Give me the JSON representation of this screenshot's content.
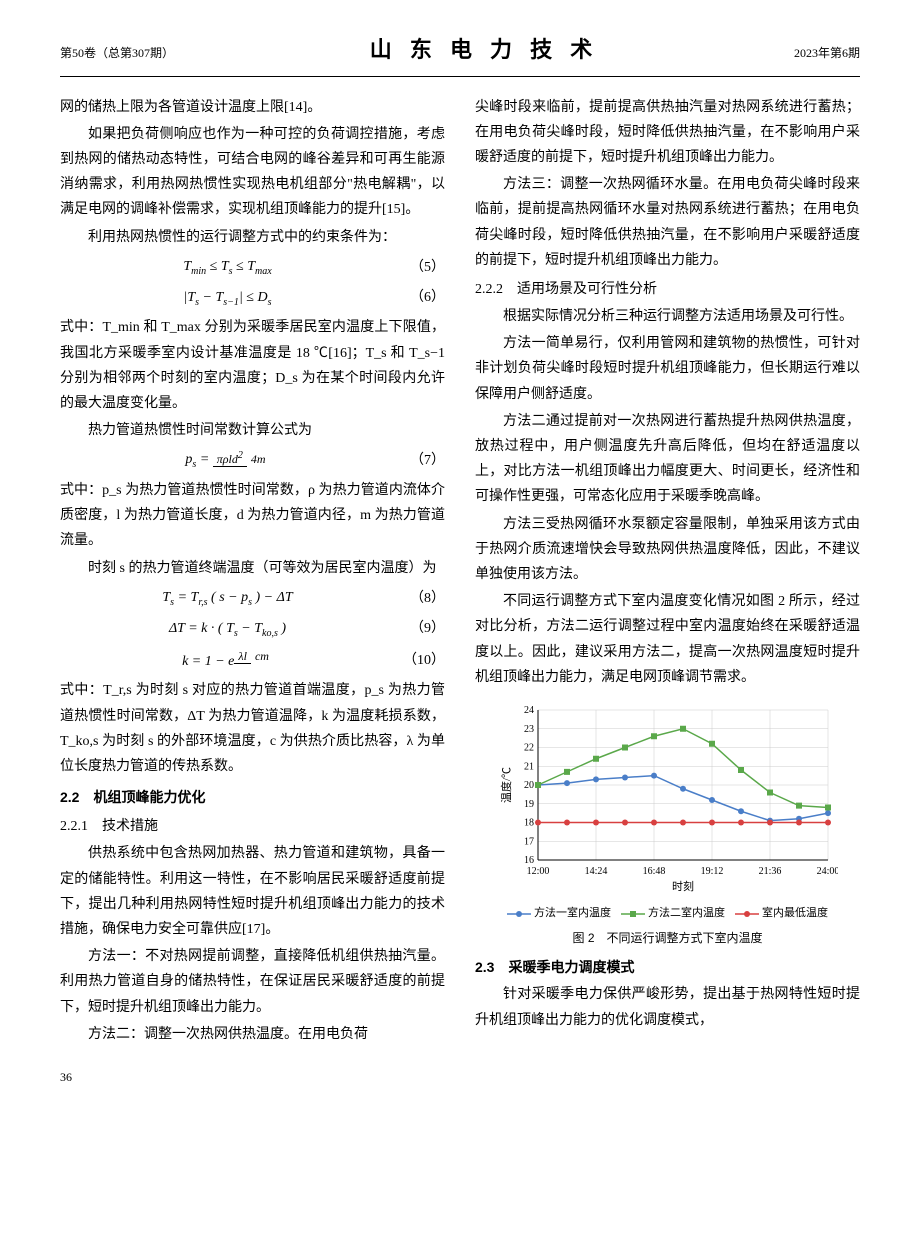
{
  "header": {
    "left": "第50卷（总第307期）",
    "center": "山 东 电 力 技 术",
    "right": "2023年第6期"
  },
  "col1": {
    "p1": "网的储热上限为各管道设计温度上限[14]。",
    "p2": "如果把负荷侧响应也作为一种可控的负荷调控措施，考虑到热网的储热动态特性，可结合电网的峰谷差异和可再生能源消纳需求，利用热网热惯性实现热电机组部分\"热电解耦\"，以满足电网的调峰补偿需求，实现机组顶峰能力的提升[15]。",
    "p3": "利用热网热惯性的运行调整方式中的约束条件为：",
    "eq5": "T_min ≤ T_s ≤ T_max",
    "eq5num": "（5）",
    "eq6": "|T_s − T_s−1| ≤ D_s",
    "eq6num": "（6）",
    "p4": "式中：T_min 和 T_max 分别为采暖季居民室内温度上下限值，我国北方采暖季室内设计基准温度是 18 ℃[16]；T_s 和 T_s−1 分别为相邻两个时刻的室内温度；D_s 为在某个时间段内允许的最大温度变化量。",
    "p5": "热力管道热惯性时间常数计算公式为",
    "eq7": "p_s = πρld² / 4m",
    "eq7num": "（7）",
    "p6": "式中：p_s 为热力管道热惯性时间常数，ρ 为热力管道内流体介质密度，l 为热力管道长度，d 为热力管道内径，m 为热力管道流量。",
    "p7": "时刻 s 的热力管道终端温度（可等效为居民室内温度）为",
    "eq8": "T_s = T_r,s ( s − p_s ) − ΔT",
    "eq8num": "（8）",
    "eq9": "ΔT = k · ( T_s − T_ko,s )",
    "eq9num": "（9）",
    "eq10": "k = 1 − e^(λl/cm)",
    "eq10num": "（10）",
    "p8": "式中：T_r,s 为时刻 s 对应的热力管道首端温度，p_s 为热力管道热惯性时间常数，ΔT 为热力管道温降，k 为温度耗损系数，T_ko,s 为时刻 s 的外部环境温度，c 为供热介质比热容，λ 为单位长度热力管道的传热系数。",
    "h22": "2.2　机组顶峰能力优化",
    "h221": "2.2.1　技术措施",
    "p9": "供热系统中包含热网加热器、热力管道和建筑物，具备一定的储能特性。利用这一特性，在不影响居民采暖舒适度前提下，提出几种利用热网特性短时提升机组顶峰出力能力的技术措施，确保电力安全可靠供应[17]。",
    "p10": "方法一：不对热网提前调整，直接降低机组供热抽汽量。利用热力管道自身的储热特性，在保证居民采暖舒适度的前提下，短时提升机组顶峰出力能力。",
    "p11": "方法二：调整一次热网供热温度。在用电负荷"
  },
  "col2": {
    "p1": "尖峰时段来临前，提前提高供热抽汽量对热网系统进行蓄热；在用电负荷尖峰时段，短时降低供热抽汽量，在不影响用户采暖舒适度的前提下，短时提升机组顶峰出力能力。",
    "p2": "方法三：调整一次热网循环水量。在用电负荷尖峰时段来临前，提前提高热网循环水量对热网系统进行蓄热；在用电负荷尖峰时段，短时降低供热抽汽量，在不影响用户采暖舒适度的前提下，短时提升机组顶峰出力能力。",
    "h222": "2.2.2　适用场景及可行性分析",
    "p3": "根据实际情况分析三种运行调整方法适用场景及可行性。",
    "p4": "方法一简单易行，仅利用管网和建筑物的热惯性，可针对非计划负荷尖峰时段短时提升机组顶峰能力，但长期运行难以保障用户侧舒适度。",
    "p5": "方法二通过提前对一次热网进行蓄热提升热网供热温度，放热过程中，用户侧温度先升高后降低，但均在舒适温度以上，对比方法一机组顶峰出力幅度更大、时间更长，经济性和可操作性更强，可常态化应用于采暖季晚高峰。",
    "p6": "方法三受热网循环水泵额定容量限制，单独采用该方式由于热网介质流速增快会导致热网供热温度降低，因此，不建议单独使用该方法。",
    "p7": "不同运行调整方式下室内温度变化情况如图 2 所示，经过对比分析，方法二运行调整过程中室内温度始终在采暖舒适温度以上。因此，建议采用方法二，提高一次热网温度短时提升机组顶峰出力能力，满足电网顶峰调节需求。"
  },
  "chart": {
    "type": "line",
    "title": "图 2　不同运行调整方式下室内温度",
    "xlabel": "时刻",
    "ylabel": "温度/℃",
    "ylim": [
      16,
      24
    ],
    "yticks": [
      16,
      17,
      18,
      19,
      20,
      21,
      22,
      23,
      24
    ],
    "xticks": [
      "12:00",
      "14:24",
      "16:48",
      "19:12",
      "21:36",
      "24:00"
    ],
    "xpositions": [
      0,
      1.2,
      2.4,
      3.6,
      4.8,
      6.0
    ],
    "series": [
      {
        "name": "方法一室内温度",
        "color": "#4a7ec8",
        "marker": "circle",
        "x": [
          0,
          0.6,
          1.2,
          1.8,
          2.4,
          3.0,
          3.6,
          4.2,
          4.8,
          5.4,
          6.0
        ],
        "y": [
          20.0,
          20.1,
          20.3,
          20.4,
          20.5,
          19.8,
          19.2,
          18.6,
          18.1,
          18.2,
          18.5
        ]
      },
      {
        "name": "方法二室内温度",
        "color": "#5aa84a",
        "marker": "square",
        "x": [
          0,
          0.6,
          1.2,
          1.8,
          2.4,
          3.0,
          3.6,
          4.2,
          4.8,
          5.4,
          6.0
        ],
        "y": [
          20.0,
          20.7,
          21.4,
          22.0,
          22.6,
          23.0,
          22.2,
          20.8,
          19.6,
          18.9,
          18.8
        ]
      },
      {
        "name": "室内最低温度",
        "color": "#d84040",
        "marker": "circle",
        "x": [
          0,
          0.6,
          1.2,
          1.8,
          2.4,
          3.0,
          3.6,
          4.2,
          4.8,
          5.4,
          6.0
        ],
        "y": [
          18,
          18,
          18,
          18,
          18,
          18,
          18,
          18,
          18,
          18,
          18
        ]
      }
    ],
    "background_color": "#ffffff",
    "grid_color": "#cccccc",
    "axis_color": "#000000",
    "label_fontsize": 11,
    "tick_fontsize": 10,
    "legend_items": [
      "方法一室内温度",
      "方法二室内温度",
      "室内最低温度"
    ],
    "legend_colors": [
      "#4a7ec8",
      "#5aa84a",
      "#d84040"
    ],
    "legend_markers": [
      "circle",
      "square",
      "circle"
    ]
  },
  "col2b": {
    "h23": "2.3　采暖季电力调度模式",
    "p1": "针对采暖季电力保供严峻形势，提出基于热网特性短时提升机组顶峰出力能力的优化调度模式，"
  },
  "pagenum": "36"
}
